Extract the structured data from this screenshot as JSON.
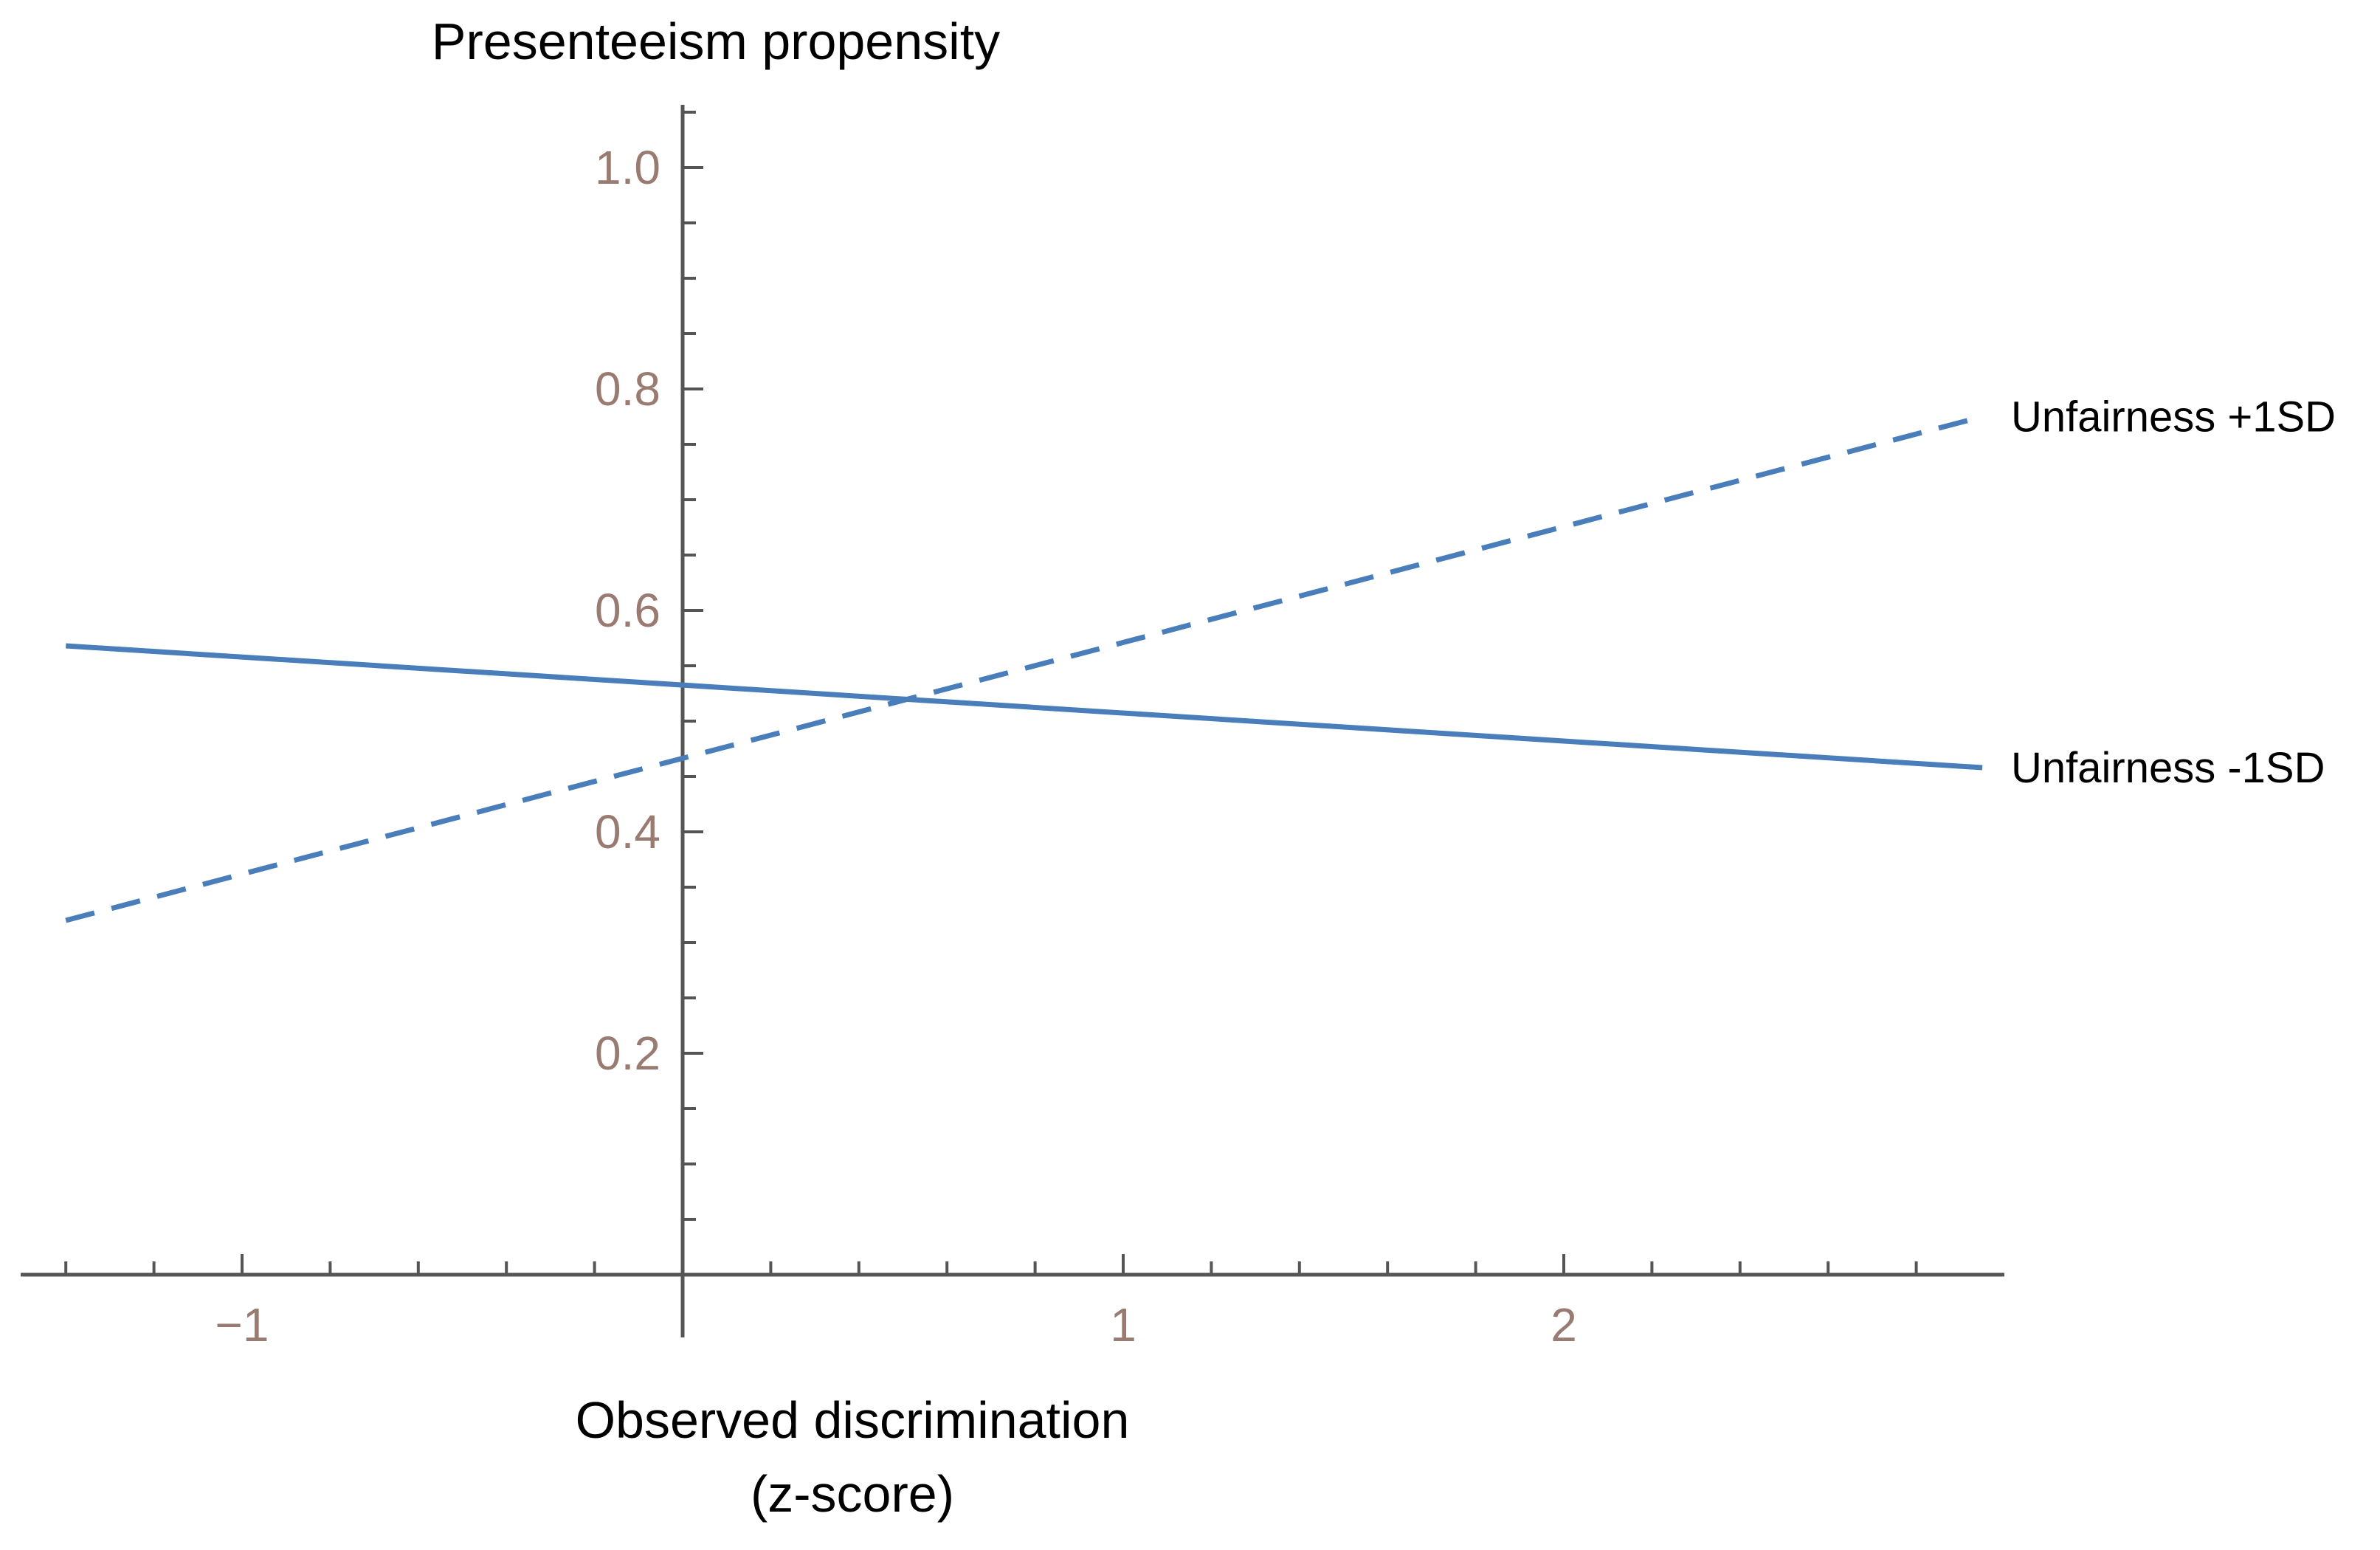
{
  "chart_data": {
    "type": "line",
    "ylabel": "Presenteeism propensity",
    "xlabel_lines": [
      "Observed discrimination",
      "(z-score)"
    ],
    "xlim": [
      -1.5,
      3.0
    ],
    "ylim": [
      0.0,
      1.05
    ],
    "x_ticks": [
      -1,
      1,
      2
    ],
    "x_tick_labels": [
      "−1",
      "1",
      "2"
    ],
    "y_ticks": [
      0.2,
      0.4,
      0.6,
      0.8,
      1.0
    ],
    "y_tick_labels": [
      "0.2",
      "0.4",
      "0.6",
      "0.8",
      "1.0"
    ],
    "x_minor_step": 0.2,
    "y_minor_step": 0.05,
    "series": [
      {
        "name": "Unfairness +1SD",
        "style": "dashed",
        "color": "#4a7ebb",
        "x": [
          -1.4,
          2.95
        ],
        "y": [
          0.32,
          0.775
        ]
      },
      {
        "name": "Unfairness -1SD",
        "style": "solid",
        "color": "#4a7ebb",
        "x": [
          -1.4,
          2.95
        ],
        "y": [
          0.568,
          0.458
        ]
      }
    ]
  }
}
